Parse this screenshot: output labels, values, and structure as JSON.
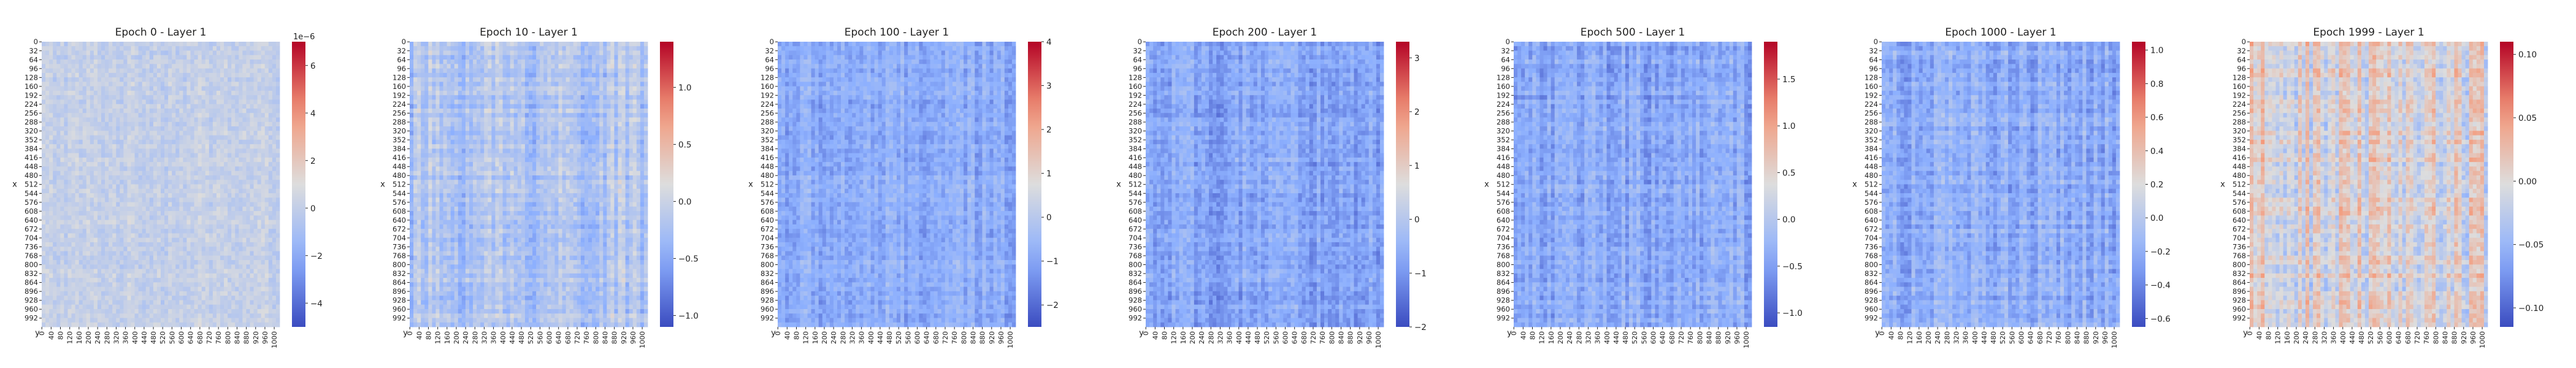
{
  "figure": {
    "y_axis_label": "x",
    "x_axis_label": "y",
    "y_tick_labels": [
      "0",
      "32",
      "64",
      "96",
      "128",
      "160",
      "192",
      "224",
      "256",
      "288",
      "320",
      "352",
      "384",
      "416",
      "448",
      "480",
      "512",
      "544",
      "576",
      "608",
      "640",
      "672",
      "704",
      "736",
      "768",
      "800",
      "832",
      "864",
      "896",
      "928",
      "960",
      "992"
    ],
    "x_tick_labels": [
      "0",
      "40",
      "80",
      "120",
      "160",
      "200",
      "240",
      "280",
      "320",
      "360",
      "400",
      "440",
      "480",
      "520",
      "560",
      "600",
      "640",
      "680",
      "720",
      "760",
      "800",
      "840",
      "880",
      "920",
      "960",
      "1000"
    ],
    "colormap": {
      "name": "coolwarm",
      "low": "#3b4cc0",
      "mid": "#dddddd",
      "high": "#b40426"
    }
  },
  "chart_data": [
    {
      "type": "heatmap",
      "title": "Epoch 0 - Layer 1",
      "xlabel": "y",
      "ylabel": "x",
      "rows": 1024,
      "cols": 1024,
      "colorbar": {
        "min": -5e-06,
        "max": 7e-06,
        "ticks": [
          "−4",
          "−2",
          "0",
          "2",
          "4",
          "6"
        ],
        "tick_values": [
          -4e-06,
          -2e-06,
          0,
          2e-06,
          4e-06,
          6e-06
        ],
        "offset_label": "1e−6"
      },
      "value_range": [
        -5e-06,
        7e-06
      ],
      "texture": {
        "center": 1e-07,
        "noise": 6e-07,
        "stripe": 3e-07
      }
    },
    {
      "type": "heatmap",
      "title": "Epoch 10 - Layer 1",
      "xlabel": "y",
      "ylabel": "x",
      "rows": 1024,
      "cols": 1024,
      "colorbar": {
        "min": -1.1,
        "max": 1.4,
        "ticks": [
          "−1.0",
          "−0.5",
          "0.0",
          "0.5",
          "1.0"
        ],
        "tick_values": [
          -1.0,
          -0.5,
          0.0,
          0.5,
          1.0
        ],
        "offset_label": ""
      },
      "value_range": [
        -1.1,
        1.4
      ],
      "texture": {
        "center": -0.2,
        "noise": 0.15,
        "stripe": 0.22
      }
    },
    {
      "type": "heatmap",
      "title": "Epoch 100 - Layer 1",
      "xlabel": "y",
      "ylabel": "x",
      "rows": 1024,
      "cols": 1024,
      "colorbar": {
        "min": -2.5,
        "max": 4.0,
        "ticks": [
          "−2",
          "−1",
          "0",
          "1",
          "2",
          "3",
          "4"
        ],
        "tick_values": [
          -2,
          -1,
          0,
          1,
          2,
          3,
          4
        ],
        "offset_label": ""
      },
      "value_range": [
        -2.5,
        4.0
      ],
      "texture": {
        "center": -0.9,
        "noise": 0.35,
        "stripe": 0.35
      }
    },
    {
      "type": "heatmap",
      "title": "Epoch 200 - Layer 1",
      "xlabel": "y",
      "ylabel": "x",
      "rows": 1024,
      "cols": 1024,
      "colorbar": {
        "min": -2.0,
        "max": 3.3,
        "ticks": [
          "−2",
          "−1",
          "0",
          "1",
          "2",
          "3"
        ],
        "tick_values": [
          -2,
          -1,
          0,
          1,
          2,
          3
        ],
        "offset_label": ""
      },
      "value_range": [
        -2.0,
        3.3
      ],
      "texture": {
        "center": -0.8,
        "noise": 0.3,
        "stripe": 0.3
      }
    },
    {
      "type": "heatmap",
      "title": "Epoch 500 - Layer 1",
      "xlabel": "y",
      "ylabel": "x",
      "rows": 1024,
      "cols": 1024,
      "colorbar": {
        "min": -1.15,
        "max": 1.9,
        "ticks": [
          "−1.0",
          "−0.5",
          "0.0",
          "0.5",
          "1.0",
          "1.5"
        ],
        "tick_values": [
          -1.0,
          -0.5,
          0.0,
          0.5,
          1.0,
          1.5
        ],
        "offset_label": ""
      },
      "value_range": [
        -1.15,
        1.9
      ],
      "texture": {
        "center": -0.42,
        "noise": 0.18,
        "stripe": 0.2
      }
    },
    {
      "type": "heatmap",
      "title": "Epoch 1000 - Layer 1",
      "xlabel": "y",
      "ylabel": "x",
      "rows": 1024,
      "cols": 1024,
      "colorbar": {
        "min": -0.65,
        "max": 1.05,
        "ticks": [
          "−0.6",
          "−0.4",
          "−0.2",
          "0.0",
          "0.2",
          "0.4",
          "0.6",
          "0.8",
          "1.0"
        ],
        "tick_values": [
          -0.6,
          -0.4,
          -0.2,
          0.0,
          0.2,
          0.4,
          0.6,
          0.8,
          1.0
        ],
        "offset_label": ""
      },
      "value_range": [
        -0.65,
        1.05
      ],
      "texture": {
        "center": -0.22,
        "noise": 0.1,
        "stripe": 0.12
      }
    },
    {
      "type": "heatmap",
      "title": "Epoch 1999 - Layer 1",
      "xlabel": "y",
      "ylabel": "x",
      "rows": 1024,
      "cols": 1024,
      "colorbar": {
        "min": -0.115,
        "max": 0.11,
        "ticks": [
          "−0.10",
          "−0.05",
          "0.00",
          "0.05",
          "0.10"
        ],
        "tick_values": [
          -0.1,
          -0.05,
          0.0,
          0.05,
          0.1
        ],
        "offset_label": ""
      },
      "value_range": [
        -0.115,
        0.11
      ],
      "texture": {
        "center": 0.0,
        "noise": 0.015,
        "stripe": 0.03
      }
    }
  ]
}
